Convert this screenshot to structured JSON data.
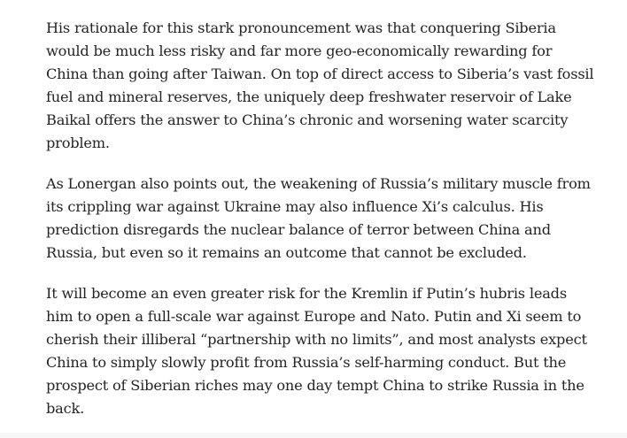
{
  "article": {
    "paragraphs": [
      {
        "lines": [
          "His rationale for this stark pronouncement was that conquering Siberia",
          "would be much less risky and far more geo-economically rewarding for",
          "China than going after Taiwan. On top of direct access to Siberia’s vast fossil",
          "fuel and mineral reserves, the uniquely deep freshwater reservoir of Lake",
          "Baikal offers the answer to China’s chronic and worsening water scarcity",
          "problem."
        ]
      },
      {
        "lines": [
          "As Lonergan also points out, the weakening of Russia’s military muscle from",
          "its crippling war against Ukraine may also influence Xi’s calculus. His",
          "prediction disregards the nuclear balance of terror between China and",
          "Russia, but even so it remains an outcome that cannot be excluded."
        ]
      },
      {
        "lines": [
          "It will become an even greater risk for the Kremlin if Putin’s hubris leads",
          "him to open a full-scale war against Europe and Nato. Putin and Xi seem to",
          "cherish their illiberal “partnership with no limits”, and most analysts expect",
          "China to simply slowly profit from Russia’s self-harming conduct. But the",
          "prospect of Siberian riches may one day tempt China to strike Russia in the",
          "back."
        ]
      }
    ]
  },
  "colors": {
    "text": "#242424",
    "background": "#ffffff"
  }
}
